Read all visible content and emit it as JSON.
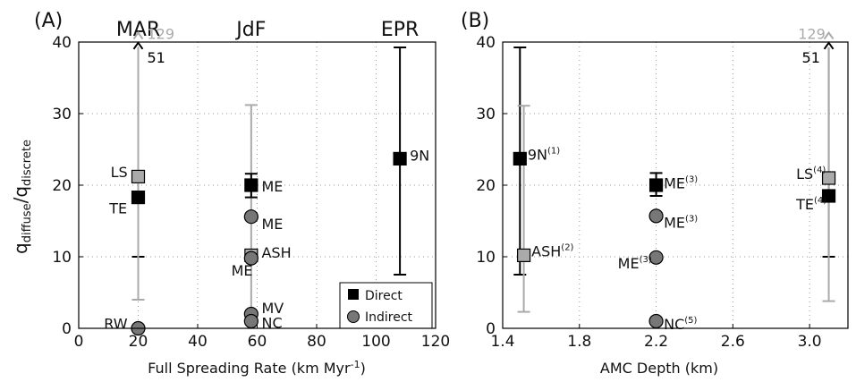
{
  "colors": {
    "direct": "#000000",
    "indirect": "#777777",
    "light": "#aaaaaa",
    "grid": "#999999"
  },
  "chart_data": [
    {
      "panel_label": "(A)",
      "type": "scatter",
      "ylabel_main": "q",
      "ylabel_sub1": "diffuse",
      "ylabel_sep": "/q",
      "ylabel_sub2": "discrete",
      "xlabel_main": "Full Spreading Rate (km Myr",
      "xlabel_sup": "-1",
      "xlabel_end": ")",
      "xlim": [
        0,
        120
      ],
      "ylim": [
        0,
        40
      ],
      "xticks": [
        0,
        20,
        40,
        60,
        80,
        100,
        120
      ],
      "yticks": [
        0,
        10,
        20,
        30,
        40
      ],
      "grid": true,
      "legend": "bottom-right",
      "legend_entries": [
        {
          "label": "Direct",
          "marker": "square",
          "color": "#000000"
        },
        {
          "label": "Indirect",
          "marker": "circle",
          "color": "#777777"
        }
      ],
      "top_labels": [
        {
          "text": "MAR",
          "x": 20
        },
        {
          "text": "JdF",
          "x": 58
        },
        {
          "text": "EPR",
          "x": 108
        }
      ],
      "errorbars": [
        {
          "x": 20,
          "low": 10,
          "high": 51,
          "color": "#000000",
          "offset": 0
        },
        {
          "x": 20,
          "low": 4,
          "high": 129,
          "color": "#aaaaaa",
          "offset": 0
        },
        {
          "x": 58,
          "low": 2,
          "high": 31.2,
          "color": "#aaaaaa",
          "offset": 0
        },
        {
          "x": 58,
          "low": 18.3,
          "high": 21.6,
          "color": "#000000",
          "offset": 0
        },
        {
          "x": 108,
          "low": 7.5,
          "high": 39.8,
          "color": "#000000",
          "offset": 0
        }
      ],
      "arrows": [
        {
          "x": 20,
          "label": "129",
          "color": "#aaaaaa",
          "y": 41.3,
          "tx": 23,
          "ty": 41.2
        },
        {
          "x": 20,
          "label": "51",
          "color": "#000000",
          "y": 39.9,
          "tx": 23,
          "ty": 37.9
        }
      ],
      "points": [
        {
          "x": 20,
          "y": 21.2,
          "label": "LS",
          "type": "direct-light",
          "tx": 10.7,
          "ty": 21.9
        },
        {
          "x": 20,
          "y": 18.3,
          "label": "TE",
          "type": "direct",
          "tx": 10.3,
          "ty": 16.8
        },
        {
          "x": 20,
          "y": 0,
          "label": "RW",
          "type": "indirect",
          "tx": 8.5,
          "ty": 0.7
        },
        {
          "x": 58,
          "y": 20,
          "label": "ME",
          "type": "direct",
          "tx": 61.5,
          "ty": 19.9
        },
        {
          "x": 58,
          "y": 15.6,
          "label": "ME",
          "type": "indirect",
          "tx": 61.5,
          "ty": 14.6
        },
        {
          "x": 58,
          "y": 10.2,
          "label": "ASH",
          "type": "direct-light",
          "tx": 61.5,
          "ty": 10.6
        },
        {
          "x": 58,
          "y": 9.8,
          "label": "ME",
          "type": "indirect",
          "tx": 51.3,
          "ty": 8.1
        },
        {
          "x": 58,
          "y": 2,
          "label": "MV",
          "type": "indirect",
          "tx": 61.5,
          "ty": 2.9
        },
        {
          "x": 58,
          "y": 1,
          "label": "NC",
          "type": "indirect",
          "tx": 61.5,
          "ty": 0.8
        },
        {
          "x": 108,
          "y": 23.7,
          "label": "9N",
          "type": "direct",
          "tx": 111.3,
          "ty": 24.2
        }
      ]
    },
    {
      "panel_label": "(B)",
      "type": "scatter",
      "xlabel_main": "AMC Depth (km)",
      "xlim": [
        1.4,
        3.2
      ],
      "ylim": [
        0,
        40
      ],
      "xticks": [
        1.4,
        1.8,
        2.2,
        2.6,
        3.0
      ],
      "xtick_labels": [
        "1.4",
        "1.8",
        "2.2",
        "2.6",
        "3.0"
      ],
      "yticks": [
        0,
        10,
        20,
        30,
        40
      ],
      "grid": true,
      "errorbars": [
        {
          "x": 1.49,
          "low": 7.5,
          "high": 39.8,
          "color": "#000000",
          "offset": 0
        },
        {
          "x": 1.51,
          "low": 2.3,
          "high": 31.1,
          "color": "#aaaaaa",
          "offset": 0
        },
        {
          "x": 2.2,
          "low": 18.5,
          "high": 21.7,
          "color": "#000000",
          "offset": 0
        },
        {
          "x": 3.1,
          "low": 10,
          "high": 51,
          "color": "#000000",
          "offset": 0
        },
        {
          "x": 3.1,
          "low": 3.8,
          "high": 129,
          "color": "#aaaaaa",
          "offset": 0
        }
      ],
      "arrows": [
        {
          "x": 3.1,
          "label": "129",
          "color": "#aaaaaa",
          "y": 41.3,
          "tx": 2.94,
          "ty": 41.2
        },
        {
          "x": 3.1,
          "label": "51",
          "color": "#000000",
          "y": 39.9,
          "tx": 2.96,
          "ty": 37.9
        }
      ],
      "points": [
        {
          "x": 1.49,
          "y": 23.7,
          "label": "9N",
          "sup": "(1)",
          "type": "direct",
          "tx": 1.53,
          "ty": 24.3
        },
        {
          "x": 1.51,
          "y": 10.2,
          "label": "ASH",
          "sup": "(2)",
          "type": "direct-light",
          "tx": 1.55,
          "ty": 10.8
        },
        {
          "x": 2.2,
          "y": 20,
          "label": "ME",
          "sup": "(3)",
          "type": "direct",
          "tx": 2.24,
          "ty": 20.3
        },
        {
          "x": 2.2,
          "y": 15.7,
          "label": "ME",
          "sup": "(3)",
          "type": "indirect",
          "tx": 2.24,
          "ty": 14.8
        },
        {
          "x": 2.2,
          "y": 9.9,
          "label": "ME",
          "sup": "(3)",
          "type": "indirect",
          "tx": 2.0,
          "ty": 9.1,
          "anchor": "start"
        },
        {
          "x": 2.2,
          "y": 1,
          "label": "NC",
          "sup": "(5)",
          "type": "indirect",
          "tx": 2.24,
          "ty": 0.6
        },
        {
          "x": 3.1,
          "y": 21,
          "label": "LS",
          "sup": "(4)",
          "type": "direct-light",
          "tx": 2.93,
          "ty": 21.6,
          "anchor": "start"
        },
        {
          "x": 3.1,
          "y": 18.5,
          "label": "TE",
          "sup": "(4)",
          "type": "direct",
          "tx": 2.93,
          "ty": 17.4,
          "anchor": "start"
        }
      ]
    }
  ]
}
